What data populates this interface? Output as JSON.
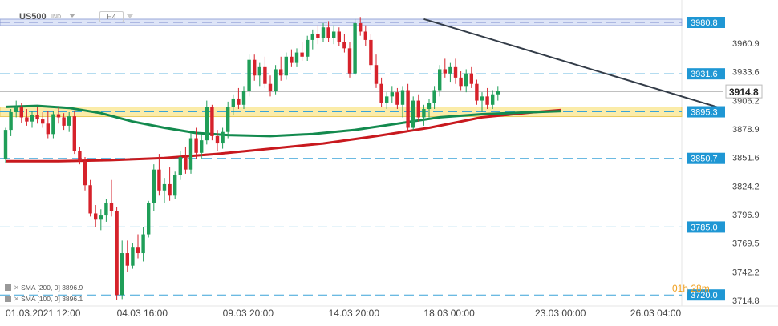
{
  "header": {
    "symbol": "US500",
    "indicator_label": "IND",
    "timeframe": "H4"
  },
  "indicators": [
    {
      "label": "SMA",
      "params": "[200,  0]",
      "value": "3896.9",
      "color": "#c8191e"
    },
    {
      "label": "SMA",
      "params": "[100,  0]",
      "value": "3896.1",
      "color": "#138a4e"
    }
  ],
  "timer": "01h 28m",
  "chart_data": {
    "type": "candlestick",
    "y_range": [
      3705,
      3995
    ],
    "y_ticks": [
      3960.9,
      3933.6,
      3906.2,
      3878.9,
      3851.6,
      3824.2,
      3796.9,
      3769.5,
      3742.2,
      3714.8
    ],
    "x_ticks": [
      {
        "label": "01.03.2021  12:00",
        "bar": 0
      },
      {
        "label": "04.03  16:00",
        "bar": 21
      },
      {
        "label": "09.03  20:00",
        "bar": 41
      },
      {
        "label": "14.03  20:00",
        "bar": 61
      },
      {
        "label": "18.03  00:00",
        "bar": 79
      },
      {
        "label": "23.03  00:00",
        "bar": 100
      },
      {
        "label": "26.03  04:00",
        "bar": 118
      }
    ],
    "current_price": {
      "value": 3914.8,
      "label": "3914.8"
    },
    "levels": [
      {
        "value": 3980.8,
        "label": "3980.8",
        "style": "zone-blue"
      },
      {
        "value": 3931.6,
        "label": "3931.6",
        "style": "dash"
      },
      {
        "value": 3895.3,
        "label": "3895.3",
        "style": "zone-yellow"
      },
      {
        "value": 3850.7,
        "label": "3850.7",
        "style": "dash"
      },
      {
        "value": 3785.0,
        "label": "3785.0",
        "style": "dash"
      },
      {
        "value": 3720.0,
        "label": "3720.0",
        "style": "dash"
      }
    ],
    "trendline": {
      "from": {
        "bar": 79,
        "value": 3984
      },
      "to": {
        "bar": 122,
        "value": 3898
      }
    },
    "candles": [
      [
        3850,
        3880,
        3846,
        3878
      ],
      [
        3878,
        3898,
        3872,
        3895
      ],
      [
        3895,
        3906,
        3890,
        3900
      ],
      [
        3900,
        3904,
        3885,
        3890
      ],
      [
        3890,
        3898,
        3882,
        3886
      ],
      [
        3886,
        3896,
        3880,
        3892
      ],
      [
        3892,
        3900,
        3884,
        3888
      ],
      [
        3888,
        3895,
        3880,
        3884
      ],
      [
        3884,
        3896,
        3870,
        3874
      ],
      [
        3874,
        3896,
        3870,
        3893
      ],
      [
        3893,
        3900,
        3884,
        3890
      ],
      [
        3890,
        3894,
        3878,
        3882
      ],
      [
        3882,
        3895,
        3876,
        3891
      ],
      [
        3891,
        3896,
        3855,
        3858
      ],
      [
        3858,
        3862,
        3845,
        3848
      ],
      [
        3848,
        3852,
        3820,
        3825
      ],
      [
        3825,
        3830,
        3795,
        3798
      ],
      [
        3798,
        3806,
        3785,
        3792
      ],
      [
        3792,
        3802,
        3782,
        3796
      ],
      [
        3796,
        3812,
        3790,
        3808
      ],
      [
        3808,
        3830,
        3795,
        3800
      ],
      [
        3800,
        3804,
        3715,
        3720
      ],
      [
        3720,
        3772,
        3716,
        3760
      ],
      [
        3760,
        3772,
        3742,
        3748
      ],
      [
        3748,
        3770,
        3745,
        3766
      ],
      [
        3766,
        3778,
        3755,
        3760
      ],
      [
        3760,
        3785,
        3752,
        3778
      ],
      [
        3778,
        3810,
        3775,
        3808
      ],
      [
        3808,
        3845,
        3800,
        3840
      ],
      [
        3840,
        3855,
        3815,
        3820
      ],
      [
        3820,
        3832,
        3808,
        3826
      ],
      [
        3826,
        3842,
        3810,
        3815
      ],
      [
        3815,
        3838,
        3812,
        3835
      ],
      [
        3835,
        3858,
        3830,
        3852
      ],
      [
        3852,
        3862,
        3836,
        3840
      ],
      [
        3840,
        3875,
        3836,
        3870
      ],
      [
        3870,
        3880,
        3850,
        3856
      ],
      [
        3856,
        3874,
        3850,
        3868
      ],
      [
        3868,
        3906,
        3864,
        3900
      ],
      [
        3900,
        3902,
        3868,
        3872
      ],
      [
        3872,
        3878,
        3858,
        3865
      ],
      [
        3865,
        3880,
        3860,
        3876
      ],
      [
        3876,
        3905,
        3870,
        3900
      ],
      [
        3900,
        3912,
        3892,
        3908
      ],
      [
        3908,
        3918,
        3898,
        3902
      ],
      [
        3902,
        3920,
        3898,
        3915
      ],
      [
        3915,
        3950,
        3910,
        3945
      ],
      [
        3945,
        3950,
        3925,
        3930
      ],
      [
        3930,
        3942,
        3920,
        3938
      ],
      [
        3938,
        3948,
        3918,
        3922
      ],
      [
        3922,
        3930,
        3910,
        3915
      ],
      [
        3915,
        3940,
        3912,
        3936
      ],
      [
        3936,
        3948,
        3925,
        3930
      ],
      [
        3930,
        3952,
        3926,
        3948
      ],
      [
        3948,
        3955,
        3938,
        3942
      ],
      [
        3942,
        3956,
        3938,
        3952
      ],
      [
        3952,
        3962,
        3944,
        3948
      ],
      [
        3948,
        3968,
        3944,
        3964
      ],
      [
        3964,
        3974,
        3955,
        3970
      ],
      [
        3970,
        3978,
        3960,
        3966
      ],
      [
        3966,
        3980,
        3962,
        3976
      ],
      [
        3976,
        3982,
        3962,
        3966
      ],
      [
        3966,
        3978,
        3960,
        3972
      ],
      [
        3972,
        3976,
        3958,
        3962
      ],
      [
        3962,
        3970,
        3952,
        3956
      ],
      [
        3956,
        3962,
        3928,
        3932
      ],
      [
        3932,
        3984,
        3930,
        3980
      ],
      [
        3980,
        3986,
        3968,
        3972
      ],
      [
        3972,
        3978,
        3958,
        3964
      ],
      [
        3964,
        3970,
        3935,
        3940
      ],
      [
        3940,
        3950,
        3918,
        3922
      ],
      [
        3922,
        3928,
        3900,
        3904
      ],
      [
        3904,
        3914,
        3898,
        3910
      ],
      [
        3910,
        3920,
        3904,
        3914
      ],
      [
        3914,
        3918,
        3898,
        3902
      ],
      [
        3902,
        3920,
        3890,
        3916
      ],
      [
        3916,
        3922,
        3876,
        3880
      ],
      [
        3880,
        3910,
        3878,
        3906
      ],
      [
        3906,
        3912,
        3886,
        3890
      ],
      [
        3890,
        3902,
        3882,
        3898
      ],
      [
        3898,
        3908,
        3890,
        3904
      ],
      [
        3904,
        3920,
        3898,
        3916
      ],
      [
        3916,
        3940,
        3910,
        3936
      ],
      [
        3936,
        3946,
        3928,
        3932
      ],
      [
        3932,
        3942,
        3924,
        3938
      ],
      [
        3938,
        3946,
        3922,
        3928
      ],
      [
        3928,
        3934,
        3916,
        3920
      ],
      [
        3920,
        3936,
        3914,
        3932
      ],
      [
        3932,
        3938,
        3918,
        3922
      ],
      [
        3922,
        3926,
        3902,
        3906
      ],
      [
        3906,
        3914,
        3895,
        3910
      ],
      [
        3910,
        3918,
        3898,
        3902
      ],
      [
        3902,
        3916,
        3898,
        3912
      ],
      [
        3912,
        3920,
        3906,
        3915
      ]
    ],
    "series": [
      {
        "name": "SMA [200,  0]",
        "color": "#c8191e",
        "values": [
          [
            0,
            3848
          ],
          [
            10,
            3848
          ],
          [
            20,
            3849
          ],
          [
            30,
            3851
          ],
          [
            40,
            3855
          ],
          [
            50,
            3860
          ],
          [
            60,
            3865
          ],
          [
            70,
            3872
          ],
          [
            80,
            3880
          ],
          [
            90,
            3890
          ],
          [
            100,
            3895
          ],
          [
            105,
            3897
          ]
        ]
      },
      {
        "name": "SMA [100,  0]",
        "color": "#138a4e",
        "values": [
          [
            0,
            3900
          ],
          [
            6,
            3901
          ],
          [
            12,
            3899
          ],
          [
            18,
            3894
          ],
          [
            24,
            3886
          ],
          [
            30,
            3880
          ],
          [
            36,
            3875
          ],
          [
            42,
            3873
          ],
          [
            50,
            3872
          ],
          [
            58,
            3874
          ],
          [
            66,
            3878
          ],
          [
            74,
            3884
          ],
          [
            82,
            3890
          ],
          [
            90,
            3893
          ],
          [
            100,
            3895
          ],
          [
            105,
            3896
          ]
        ]
      }
    ]
  }
}
